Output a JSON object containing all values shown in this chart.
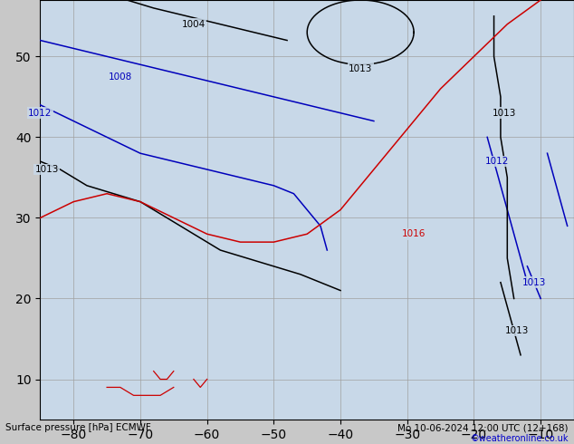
{
  "title_left": "Surface pressure [hPa] ECMWF",
  "title_right": "Mo 10-06-2024 12:00 UTC (12+168)",
  "copyright": "©weatheronline.co.uk",
  "ocean_color": "#c8d8e8",
  "land_color": "#b8d890",
  "border_color": "#808080",
  "grid_color": "#a0a0a0",
  "bottom_bar_color": "#c8c8c8",
  "lon_min": -85,
  "lon_max": -5,
  "lat_min": 5,
  "lat_max": 57,
  "lon_ticks": [
    -80,
    -70,
    -60,
    -50,
    -40,
    -30,
    -20,
    -10
  ],
  "lat_ticks": [
    10,
    20,
    30,
    40,
    50
  ],
  "label_fontsize": 7
}
